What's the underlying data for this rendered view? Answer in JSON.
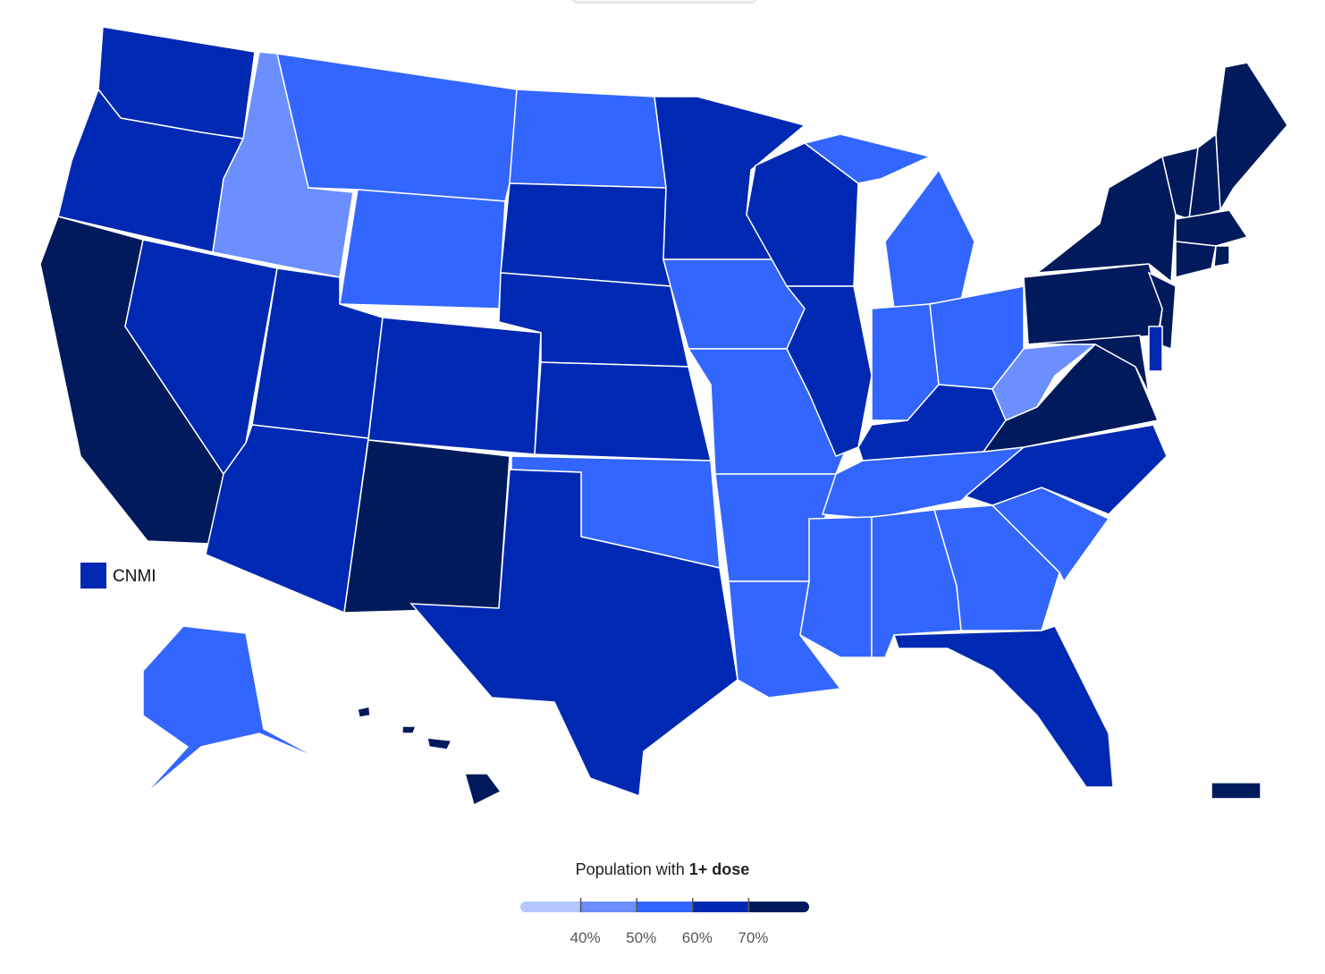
{
  "map": {
    "colors": [
      "#b3c6ff",
      "#6b8fff",
      "#3366ff",
      "#0029b3",
      "#001a5c"
    ],
    "state_bins": [
      3,
      3,
      4,
      3,
      1,
      2,
      2,
      3,
      3,
      3,
      4,
      2,
      3,
      3,
      3,
      2,
      3,
      3,
      2,
      2,
      2,
      2,
      3,
      3,
      2,
      2,
      2,
      3,
      2,
      2,
      2,
      2,
      3,
      2,
      3,
      4,
      1,
      4,
      4,
      4,
      4,
      3,
      4,
      4,
      4,
      4,
      4,
      4,
      2,
      4,
      4
    ],
    "cnmi": {
      "label": "CNMI",
      "bin": 3
    },
    "legend": {
      "title_prefix": "Population with",
      "title_bold": "1+ dose",
      "ticks": [
        {
          "value": 40,
          "label": "40%"
        },
        {
          "value": 50,
          "label": "50%"
        },
        {
          "value": 60,
          "label": "60%"
        },
        {
          "value": 70,
          "label": "70%"
        }
      ]
    }
  }
}
